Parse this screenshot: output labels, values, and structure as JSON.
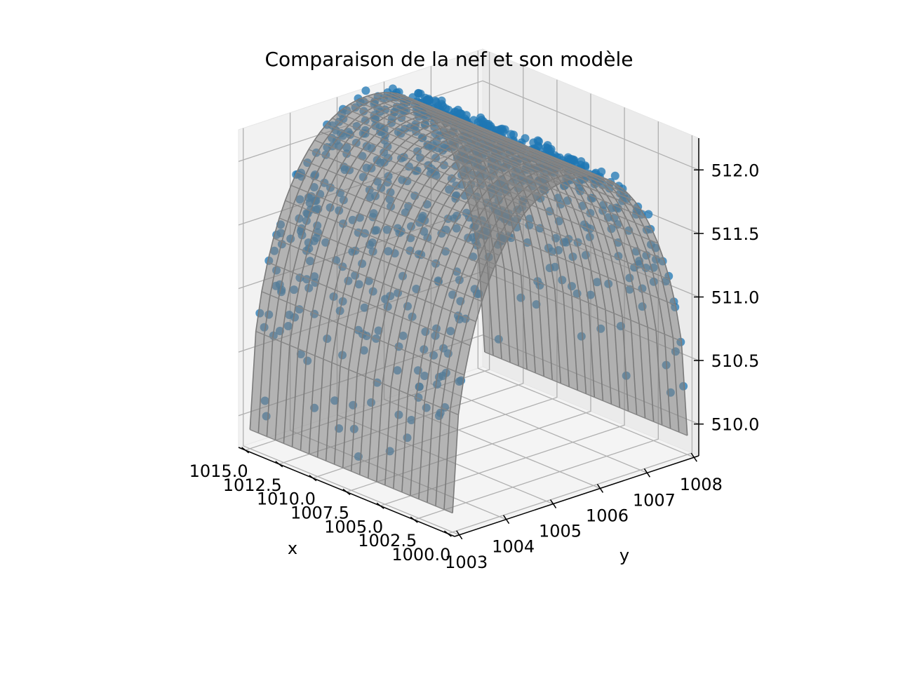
{
  "chart_data": {
    "type": "scatter",
    "projection": "3d",
    "title": "Comparaison de la nef et son modèle",
    "xlabel": "x",
    "ylabel": "y",
    "zlabel": "",
    "xlim": [
      999.5,
      1015.5
    ],
    "ylim": [
      1002.9,
      1008.1
    ],
    "zlim": [
      509.75,
      512.25
    ],
    "x_ticks": [
      "1000.0",
      "1002.5",
      "1005.0",
      "1007.5",
      "1010.0",
      "1012.5",
      "1015.0"
    ],
    "y_ticks": [
      "1003",
      "1004",
      "1005",
      "1006",
      "1007",
      "1008"
    ],
    "z_ticks": [
      "510.0",
      "510.5",
      "511.0",
      "511.5",
      "512.0"
    ],
    "grid": true,
    "model": {
      "type": "surface_wireframe",
      "color": "#808080",
      "x_range": [
        1000,
        1015
      ],
      "y_range": [
        1003,
        1008
      ],
      "z_base": 509.9,
      "z_crest": 512.22,
      "crest_y": 1005.5
    },
    "points": {
      "type": "scatter",
      "color": "#1f77b4",
      "description_values": "measured vault points spread over the modelled surface"
    }
  }
}
